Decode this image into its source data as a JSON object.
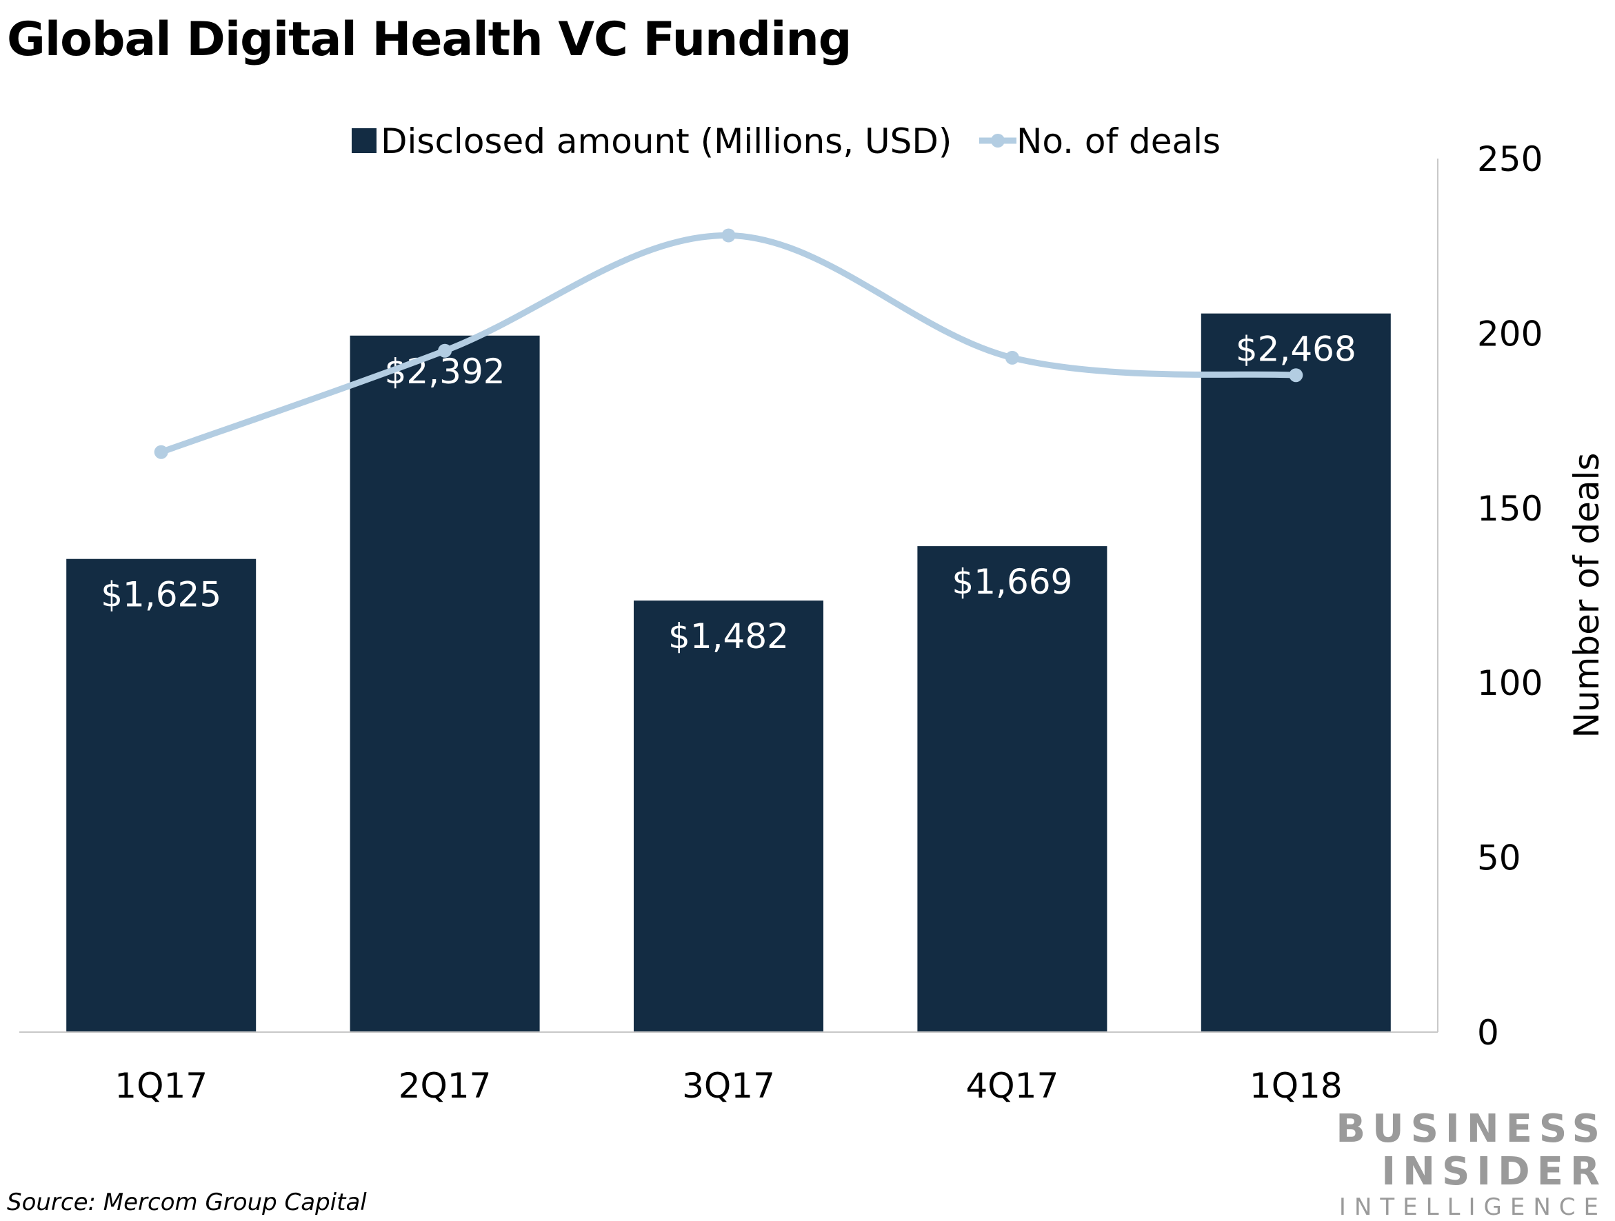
{
  "title": "Global Digital Health VC Funding",
  "source": "Source: Mercom Group Capital",
  "brand": {
    "line1": "BUSINESS",
    "line2": "INSIDER",
    "line3": "INTELLIGENCE"
  },
  "colors": {
    "bar": "#132c43",
    "line": "#b3cde2",
    "axis": "#c8c8c8",
    "label": "#ffffff"
  },
  "chart_data": {
    "type": "bar",
    "categories": [
      "1Q17",
      "2Q17",
      "3Q17",
      "4Q17",
      "1Q18"
    ],
    "series": [
      {
        "name": "Disclosed amount (Millions, USD)",
        "type": "bar",
        "values": [
          1625,
          2392,
          1482,
          1669,
          2468
        ],
        "labels": [
          "$1,625",
          "$2,392",
          "$1,482",
          "$1,669",
          "$2,468"
        ]
      },
      {
        "name": "No. of deals",
        "type": "line",
        "axis": "right",
        "values": [
          166,
          195,
          228,
          193,
          188
        ]
      }
    ],
    "y_right": {
      "label": "Number of deals",
      "lim": [
        0,
        250
      ],
      "ticks": [
        0,
        50,
        100,
        150,
        200,
        250
      ]
    },
    "y_left_lim": [
      0,
      3000
    ],
    "legend": "top-center",
    "grid": false
  }
}
